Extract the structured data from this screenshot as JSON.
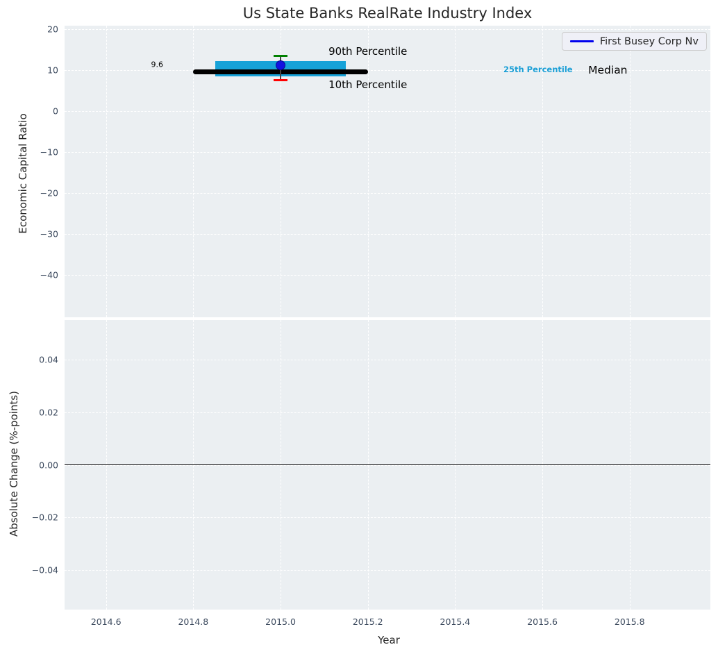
{
  "title": "Us State Banks RealRate Industry Index",
  "legend": {
    "label": "First Busey Corp Nv",
    "line_color": "#0000ee",
    "position": "upper-right"
  },
  "colors": {
    "panel_bg": "#ebeff2",
    "grid": "#ffffff",
    "tick": "#3c4a5e",
    "median": "#000000",
    "iqr_band": "#17a2d8",
    "p90_cap": "#008000",
    "p10_cap": "#ff0000",
    "whisker_stem": "#444444",
    "company_point": "#1212e0",
    "zero_line": "#000000"
  },
  "chart_data": [
    {
      "type": "line",
      "title": "Us State Banks RealRate Industry Index",
      "ylabel": "Economic Capital Ratio",
      "xlabel": "",
      "grid": "white-dashed",
      "legend_entries": [
        "First Busey Corp Nv"
      ],
      "legend_position": "upper-right",
      "xlim": [
        2014.505,
        2015.985
      ],
      "ylim": [
        -50.3,
        20.9
      ],
      "xtick_values": [
        2014.6,
        2014.8,
        2015.0,
        2015.2,
        2015.4,
        2015.6,
        2015.8
      ],
      "xtick_labels": [],
      "ytick_values": [
        20,
        10,
        0,
        -10,
        -20,
        -30,
        -40
      ],
      "ytick_labels": [
        "20",
        "10",
        "0",
        "−10",
        "−20",
        "−30",
        "−40"
      ],
      "series": {
        "median": {
          "name": "Median",
          "x_start": 2014.8,
          "x_end": 2015.2,
          "value": 9.6
        },
        "iqr_band": {
          "name": "25th-75th Percentile band",
          "x_start": 2014.85,
          "x_end": 2015.15,
          "p25": 8.6,
          "p75": 12.3
        },
        "whisker": {
          "name": "10th-90th Percentile whisker",
          "x": 2015.0,
          "p10": 7.6,
          "p90": 13.5
        },
        "company_point": {
          "name": "First Busey Corp Nv",
          "x": 2015.0,
          "y": 11.2
        }
      },
      "annotations": [
        {
          "text": "90th Percentile",
          "x": 2015.2,
          "y": 14.6,
          "color": "#000000",
          "size": 15,
          "bold": false
        },
        {
          "text": "10th Percentile",
          "x": 2015.2,
          "y": 6.5,
          "color": "#000000",
          "size": 15,
          "bold": false
        },
        {
          "text": "9.6",
          "x": 2014.717,
          "y": 11.4,
          "color": "#000000",
          "size": 11,
          "bold": false
        },
        {
          "text": "25th Percentile",
          "x": 2015.59,
          "y": 10.15,
          "color": "#1b9fd6",
          "size": 11.5,
          "bold": true
        },
        {
          "text": "Median",
          "x": 2015.75,
          "y": 10.1,
          "color": "#000000",
          "size": 15.5,
          "bold": false
        }
      ]
    },
    {
      "type": "line",
      "ylabel": "Absolute Change (%-points)",
      "xlabel": "Year",
      "grid": "white-dashed",
      "xlim": [
        2014.505,
        2015.985
      ],
      "ylim": [
        -0.055,
        0.055
      ],
      "xtick_values": [
        2014.6,
        2014.8,
        2015.0,
        2015.2,
        2015.4,
        2015.6,
        2015.8
      ],
      "xtick_labels": [
        "2014.6",
        "2014.8",
        "2015.0",
        "2015.2",
        "2015.4",
        "2015.6",
        "2015.8"
      ],
      "ytick_values": [
        0.04,
        0.02,
        0.0,
        -0.02,
        -0.04
      ],
      "ytick_labels": [
        "0.04",
        "0.02",
        "0.00",
        "−0.02",
        "−0.04"
      ],
      "zero_line": 0.0,
      "series": {}
    }
  ]
}
